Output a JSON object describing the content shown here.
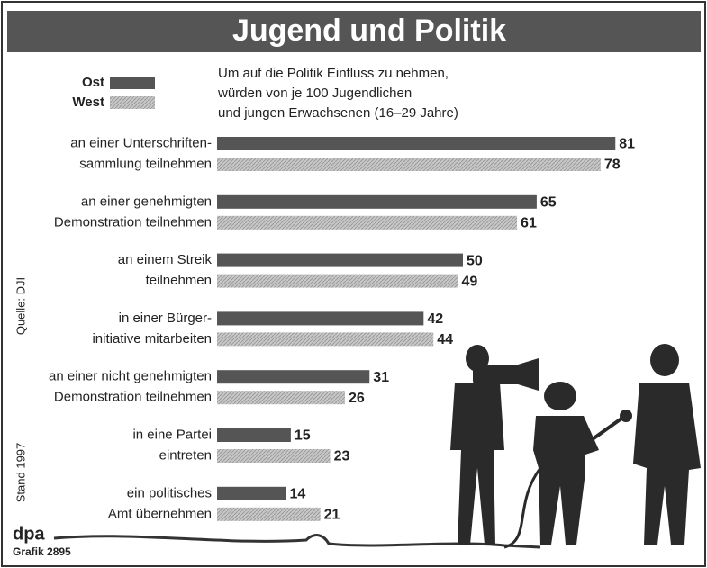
{
  "chart_data": {
    "type": "bar",
    "orientation": "horizontal",
    "title": "Jugend und Politik",
    "subtitle": [
      "Um auf die Politik Einfluss zu nehmen,",
      "würden von je 100 Jugendlichen",
      "und jungen Erwachsenen (16–29 Jahre)"
    ],
    "categories": [
      [
        "an einer Unterschriften-",
        "sammlung teilnehmen"
      ],
      [
        "an einer genehmigten",
        "Demonstration teilnehmen"
      ],
      [
        "an einem Streik",
        "teilnehmen"
      ],
      [
        "in einer Bürger-",
        "initiative mitarbeiten"
      ],
      [
        "an einer nicht genehmigten",
        "Demonstration teilnehmen"
      ],
      [
        "in eine Partei",
        "eintreten"
      ],
      [
        "ein politisches",
        "Amt übernehmen"
      ]
    ],
    "series": [
      {
        "name": "Ost",
        "color": "#555555",
        "values": [
          81,
          65,
          50,
          42,
          31,
          15,
          14
        ]
      },
      {
        "name": "West",
        "color": "#b8b8b8",
        "values": [
          78,
          61,
          49,
          44,
          26,
          23,
          21
        ]
      }
    ],
    "source": "Quelle: DJI",
    "date": "Stand 1997",
    "agency": "dpa",
    "graphic": "Grafik 2895"
  }
}
